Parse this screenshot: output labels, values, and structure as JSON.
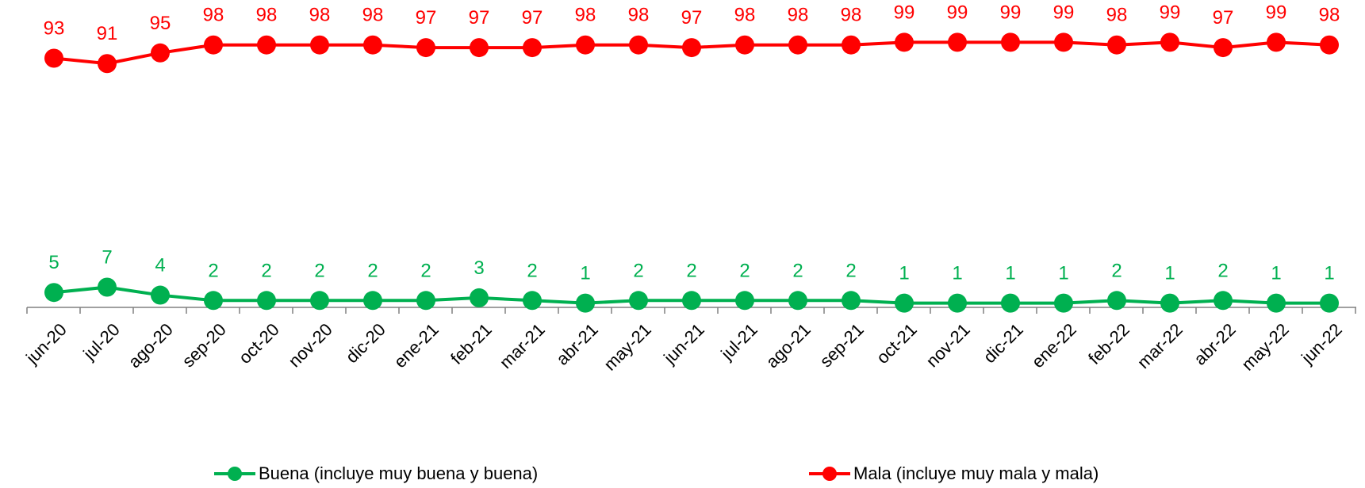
{
  "chart_data": {
    "type": "line",
    "categories": [
      "jun-20",
      "jul-20",
      "ago-20",
      "sep-20",
      "oct-20",
      "nov-20",
      "dic-20",
      "ene-21",
      "feb-21",
      "mar-21",
      "abr-21",
      "may-21",
      "jun-21",
      "jul-21",
      "ago-21",
      "sep-21",
      "oct-21",
      "nov-21",
      "dic-21",
      "ene-22",
      "feb-22",
      "mar-22",
      "abr-22",
      "may-22",
      "jun-22"
    ],
    "series": [
      {
        "name": "Buena (incluye muy buena y buena)",
        "color": "#00B050",
        "values": [
          5,
          7,
          4,
          2,
          2,
          2,
          2,
          2,
          3,
          2,
          1,
          2,
          2,
          2,
          2,
          2,
          1,
          1,
          1,
          1,
          2,
          1,
          2,
          1,
          1
        ]
      },
      {
        "name": "Mala (incluye muy mala y mala)",
        "color": "#FF0000",
        "values": [
          93,
          91,
          95,
          98,
          98,
          98,
          98,
          97,
          97,
          97,
          98,
          98,
          97,
          98,
          98,
          98,
          99,
          99,
          99,
          99,
          98,
          99,
          97,
          99,
          98
        ]
      }
    ],
    "data_labels": true,
    "legend_position": "bottom",
    "grid": false,
    "ylim": [
      0,
      100
    ]
  }
}
